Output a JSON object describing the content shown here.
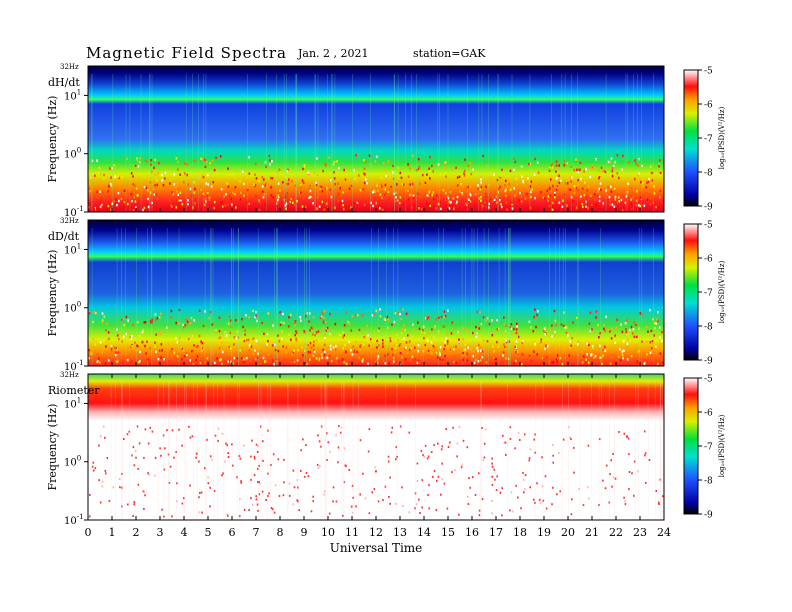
{
  "header": {
    "title": "Magnetic  Field  Spectra",
    "date": "Jan.  2  , 2021",
    "station": "station=GAK"
  },
  "chart_data": [
    {
      "type": "heatmap",
      "panel_label": "dH/dt",
      "ylabel": "Frequency  (Hz)",
      "ytop_label": "32Hz",
      "yscale": "log",
      "ylim": [
        0.1,
        32
      ],
      "xlim": [
        0,
        24
      ],
      "colorbar": {
        "label": "log₁₀(PSD)(V²/Hz)",
        "range": [
          -9,
          -5
        ],
        "ticks": [
          "-5",
          "-6",
          "-7",
          "-8",
          "-9"
        ]
      }
    },
    {
      "type": "heatmap",
      "panel_label": "dD/dt",
      "ylabel": "Frequency  (Hz)",
      "ytop_label": "32Hz",
      "yscale": "log",
      "ylim": [
        0.1,
        32
      ],
      "xlim": [
        0,
        24
      ],
      "colorbar": {
        "label": "log₁₀(PSD)(V²/Hz)",
        "range": [
          -9,
          -5
        ],
        "ticks": [
          "-5",
          "-6",
          "-7",
          "-8",
          "-9"
        ]
      }
    },
    {
      "type": "heatmap",
      "panel_label": "Riometer",
      "ylabel": "Frequency  (Hz)",
      "ytop_label": "32Hz",
      "yscale": "log",
      "ylim": [
        0.1,
        32
      ],
      "xlim": [
        0,
        24
      ],
      "xlabel": "Universal  Time",
      "xticks": [
        "0",
        "1",
        "2",
        "3",
        "4",
        "5",
        "6",
        "7",
        "8",
        "9",
        "10",
        "11",
        "12",
        "13",
        "14",
        "15",
        "16",
        "17",
        "18",
        "19",
        "20",
        "21",
        "22",
        "23",
        "24"
      ],
      "colorbar": {
        "label": "log₁₀(PSD)(V²/Hz)",
        "range": [
          -9,
          -5
        ],
        "ticks": [
          "-5",
          "-6",
          "-7",
          "-8",
          "-9"
        ]
      }
    }
  ]
}
